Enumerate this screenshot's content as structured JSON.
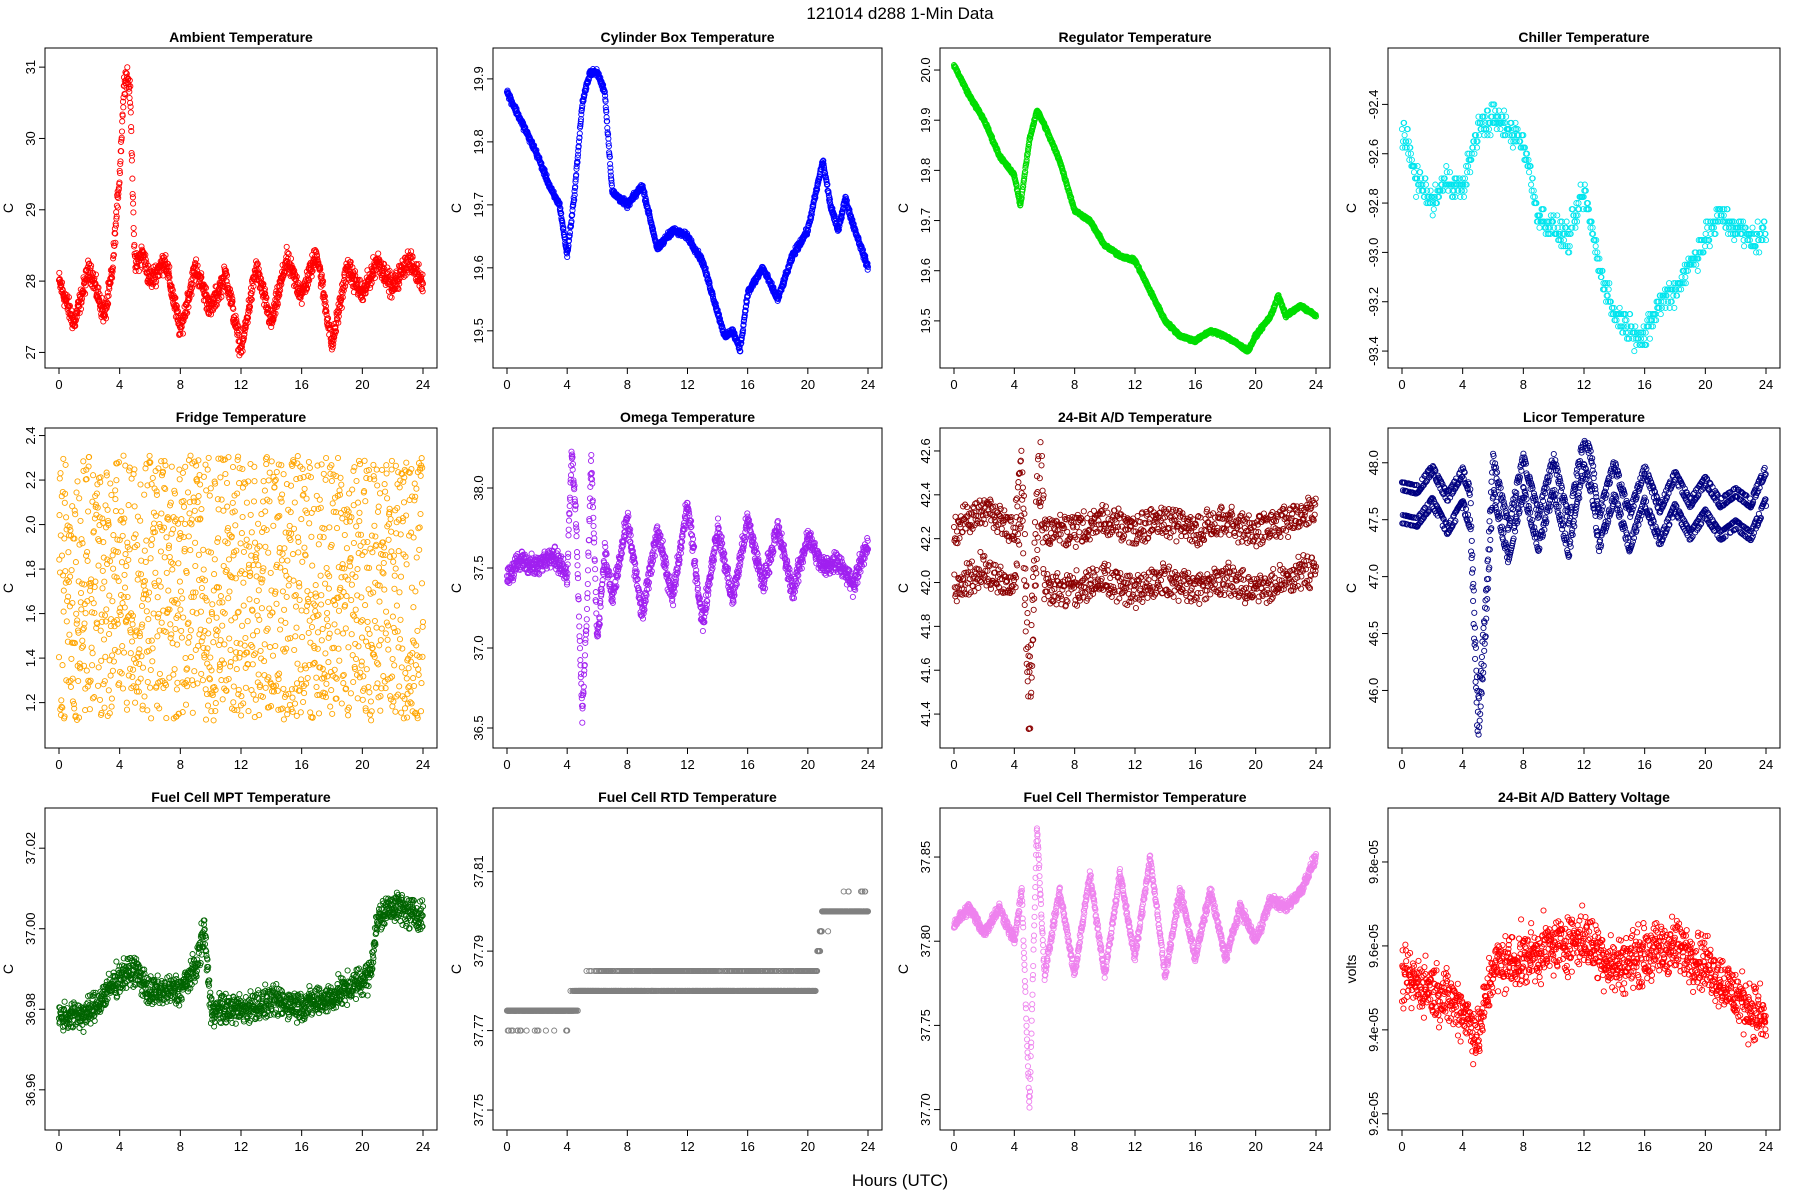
{
  "page": {
    "title": "121014   d288   1-Min Data",
    "xlabel": "Hours (UTC)"
  },
  "chart_data": [
    {
      "type": "scatter",
      "title": "Ambient Temperature",
      "ylabel": "C",
      "color": "#ff0000",
      "xlim": [
        0,
        24
      ],
      "ylim": [
        26.95,
        31.1
      ],
      "xticks": [
        "0",
        "4",
        "8",
        "12",
        "16",
        "20",
        "24"
      ],
      "yticks": [
        "27",
        "28",
        "29",
        "30",
        "31"
      ],
      "ytick_values": [
        27,
        28,
        29,
        30,
        31
      ],
      "x": [
        0,
        1,
        2,
        3,
        3.5,
        4,
        4.3,
        4.5,
        4.7,
        5,
        5.5,
        6,
        7,
        8,
        9,
        10,
        11,
        12,
        13,
        14,
        15,
        16,
        17,
        18,
        19,
        20,
        21,
        22,
        23,
        24
      ],
      "y": [
        28.0,
        27.4,
        28.2,
        27.5,
        28.1,
        29.5,
        30.8,
        30.9,
        30.6,
        28.2,
        28.4,
        28.0,
        28.3,
        27.3,
        28.2,
        27.6,
        28.1,
        27.0,
        28.2,
        27.4,
        28.3,
        27.8,
        28.4,
        27.1,
        28.2,
        27.8,
        28.3,
        27.9,
        28.3,
        28.0
      ],
      "n": 1440,
      "noise": 0.18
    },
    {
      "type": "scatter",
      "title": "Cylinder Box Temperature",
      "ylabel": "C",
      "color": "#0000ff",
      "xlim": [
        0,
        24
      ],
      "ylim": [
        19.46,
        19.93
      ],
      "xticks": [
        "0",
        "4",
        "8",
        "12",
        "16",
        "20",
        "24"
      ],
      "yticks": [
        "19.5",
        "19.6",
        "19.7",
        "19.8",
        "19.9"
      ],
      "ytick_values": [
        19.5,
        19.6,
        19.7,
        19.8,
        19.9
      ],
      "x": [
        0,
        1,
        2,
        3,
        3.5,
        4,
        4.5,
        5,
        5.5,
        6,
        6.5,
        7,
        8,
        9,
        10,
        11,
        12,
        13,
        14,
        14.5,
        15,
        15.5,
        16,
        17,
        18,
        19,
        20,
        21,
        21.5,
        22,
        22.5,
        23,
        24
      ],
      "y": [
        19.88,
        19.83,
        19.78,
        19.72,
        19.7,
        19.62,
        19.72,
        19.86,
        19.91,
        19.91,
        19.88,
        19.72,
        19.7,
        19.73,
        19.63,
        19.66,
        19.65,
        19.61,
        19.53,
        19.49,
        19.5,
        19.47,
        19.56,
        19.6,
        19.55,
        19.62,
        19.66,
        19.77,
        19.7,
        19.66,
        19.71,
        19.67,
        19.6
      ],
      "n": 1440,
      "noise": 0.006
    },
    {
      "type": "scatter",
      "title": "Regulator Temperature",
      "ylabel": "C",
      "color": "#00dd00",
      "xlim": [
        0,
        24
      ],
      "ylim": [
        19.43,
        20.02
      ],
      "xticks": [
        "0",
        "4",
        "8",
        "12",
        "16",
        "20",
        "24"
      ],
      "yticks": [
        "19.5",
        "19.6",
        "19.7",
        "19.8",
        "19.9",
        "20.0"
      ],
      "ytick_values": [
        19.5,
        19.6,
        19.7,
        19.8,
        19.9,
        20.0
      ],
      "x": [
        0,
        1,
        2,
        3,
        4,
        4.4,
        5,
        5.5,
        6,
        7,
        8,
        9,
        10,
        11,
        12,
        13,
        14,
        15,
        16,
        17,
        18,
        19,
        19.5,
        20,
        21,
        21.5,
        22,
        23,
        24
      ],
      "y": [
        20.01,
        19.95,
        19.9,
        19.83,
        19.79,
        19.73,
        19.86,
        19.92,
        19.89,
        19.82,
        19.72,
        19.7,
        19.65,
        19.63,
        19.62,
        19.56,
        19.5,
        19.47,
        19.46,
        19.48,
        19.47,
        19.45,
        19.44,
        19.47,
        19.51,
        19.55,
        19.51,
        19.53,
        19.51
      ],
      "n": 1440,
      "noise": 0.004
    },
    {
      "type": "scatter",
      "title": "Chiller Temperature",
      "ylabel": "C",
      "color": "#00e5ee",
      "xlim": [
        0,
        24
      ],
      "ylim": [
        -93.42,
        -92.22
      ],
      "xticks": [
        "0",
        "4",
        "8",
        "12",
        "16",
        "20",
        "24"
      ],
      "yticks": [
        "-92.4",
        "-92.6",
        "-92.8",
        "-93.0",
        "-93.2",
        "-93.4"
      ],
      "ytick_values": [
        -92.4,
        -92.6,
        -92.8,
        -93.0,
        -93.2,
        -93.4
      ],
      "x": [
        0,
        1,
        2,
        3,
        4,
        5,
        6,
        7,
        8,
        9,
        10,
        11,
        12,
        13,
        14,
        15,
        16,
        17,
        18,
        19,
        20,
        21,
        22,
        23,
        24
      ],
      "y": [
        -92.5,
        -92.7,
        -92.8,
        -92.7,
        -92.75,
        -92.5,
        -92.45,
        -92.5,
        -92.55,
        -92.85,
        -92.9,
        -92.95,
        -92.75,
        -93.05,
        -93.25,
        -93.3,
        -93.35,
        -93.2,
        -93.15,
        -93.05,
        -92.95,
        -92.85,
        -92.9,
        -92.95,
        -92.92
      ],
      "n": 700,
      "noise": 0.07,
      "step": 0.025
    },
    {
      "type": "scatter",
      "title": "Fridge Temperature",
      "ylabel": "C",
      "color": "#ffa500",
      "xlim": [
        0,
        24
      ],
      "ylim": [
        1.05,
        2.38
      ],
      "xticks": [
        "0",
        "4",
        "8",
        "12",
        "16",
        "20",
        "24"
      ],
      "yticks": [
        "1.2",
        "1.4",
        "1.6",
        "1.8",
        "2.0",
        "2.2",
        "2.4"
      ],
      "ytick_values": [
        1.2,
        1.4,
        1.6,
        1.8,
        2.0,
        2.2,
        2.4
      ],
      "x": [
        0,
        24
      ],
      "y": [
        1.7,
        1.7
      ],
      "n": 1440,
      "uniform": [
        1.12,
        2.31
      ]
    },
    {
      "type": "scatter",
      "title": "Omega Temperature",
      "ylabel": "C",
      "color": "#a020f0",
      "xlim": [
        0,
        24
      ],
      "ylim": [
        36.45,
        38.3
      ],
      "xticks": [
        "0",
        "4",
        "8",
        "12",
        "16",
        "20",
        "24"
      ],
      "yticks": [
        "36.5",
        "37.0",
        "37.5",
        "38.0"
      ],
      "ytick_values": [
        36.5,
        37.0,
        37.5,
        38.0
      ],
      "x": [
        0,
        1,
        2,
        3,
        4,
        4.3,
        4.6,
        5,
        5.3,
        5.6,
        6,
        6.5,
        7,
        8,
        9,
        10,
        11,
        12,
        13,
        14,
        15,
        16,
        17,
        18,
        19,
        20,
        21,
        22,
        23,
        24
      ],
      "y": [
        37.45,
        37.55,
        37.5,
        37.6,
        37.45,
        38.25,
        37.8,
        36.55,
        37.2,
        38.2,
        37.05,
        37.6,
        37.3,
        37.8,
        37.2,
        37.75,
        37.3,
        37.9,
        37.15,
        37.75,
        37.3,
        37.8,
        37.4,
        37.75,
        37.35,
        37.7,
        37.5,
        37.55,
        37.4,
        37.65
      ],
      "n": 1440,
      "noise": 0.08
    },
    {
      "type": "scatter",
      "title": "24-Bit A/D Temperature",
      "ylabel": "C",
      "color": "#8b0000",
      "xlim": [
        0,
        24
      ],
      "ylim": [
        41.3,
        42.65
      ],
      "xticks": [
        "0",
        "4",
        "8",
        "12",
        "16",
        "20",
        "24"
      ],
      "yticks": [
        "41.4",
        "41.6",
        "41.8",
        "42.0",
        "42.2",
        "42.4",
        "42.6"
      ],
      "ytick_values": [
        41.4,
        41.6,
        41.8,
        42.0,
        42.2,
        42.4,
        42.6
      ],
      "x": [
        0,
        2,
        4,
        4.5,
        5,
        5.3,
        5.7,
        6,
        8,
        10,
        12,
        14,
        16,
        18,
        20,
        22,
        24
      ],
      "y": [
        42.1,
        42.2,
        42.1,
        42.5,
        41.4,
        42.0,
        42.6,
        42.1,
        42.1,
        42.15,
        42.1,
        42.15,
        42.1,
        42.15,
        42.1,
        42.15,
        42.2
      ],
      "n": 1440,
      "osc": 0.17,
      "noise": 0.05
    },
    {
      "type": "scatter",
      "title": "Licor Temperature",
      "ylabel": "C",
      "color": "#000080",
      "xlim": [
        0,
        24
      ],
      "ylim": [
        45.6,
        48.2
      ],
      "xticks": [
        "0",
        "4",
        "8",
        "12",
        "16",
        "20",
        "24"
      ],
      "yticks": [
        "46.0",
        "46.5",
        "47.0",
        "47.5",
        "48.0"
      ],
      "ytick_values": [
        46.0,
        46.5,
        47.0,
        47.5,
        48.0
      ],
      "x": [
        0,
        1,
        2,
        3,
        4,
        4.5,
        5,
        5.5,
        6,
        7,
        8,
        9,
        10,
        11,
        12,
        12.5,
        13,
        14,
        15,
        16,
        17,
        18,
        19,
        20,
        21,
        22,
        23,
        24
      ],
      "y": [
        47.65,
        47.62,
        47.8,
        47.55,
        47.78,
        47.6,
        45.7,
        46.6,
        47.9,
        47.3,
        47.9,
        47.4,
        47.9,
        47.35,
        48.1,
        47.9,
        47.4,
        47.85,
        47.4,
        47.8,
        47.45,
        47.75,
        47.5,
        47.7,
        47.5,
        47.6,
        47.5,
        47.8
      ],
      "n": 1440,
      "noise": 0.005,
      "osc": 0.18
    },
    {
      "type": "scatter",
      "title": "Fuel Cell MPT Temperature",
      "ylabel": "C",
      "color": "#006400",
      "xlim": [
        0,
        24
      ],
      "ylim": [
        36.953,
        37.027
      ],
      "xticks": [
        "0",
        "4",
        "8",
        "12",
        "16",
        "20",
        "24"
      ],
      "yticks": [
        "36.96",
        "36.98",
        "37.00",
        "37.02"
      ],
      "ytick_values": [
        36.96,
        36.98,
        37.0,
        37.02
      ],
      "x": [
        0,
        2,
        4,
        5,
        6,
        8,
        9,
        9.6,
        10,
        12,
        14,
        16,
        18,
        20,
        20.5,
        21,
        22,
        23,
        24
      ],
      "y": [
        36.978,
        36.979,
        36.988,
        36.99,
        36.984,
        36.985,
        36.99,
        37.0,
        36.98,
        36.98,
        36.982,
        36.981,
        36.983,
        36.987,
        36.989,
        37.002,
        37.006,
        37.004,
        37.003
      ],
      "n": 1440,
      "noise": 0.0045
    },
    {
      "type": "scatter",
      "title": "Fuel Cell RTD Temperature",
      "ylabel": "C",
      "color": "#808080",
      "xlim": [
        0,
        24
      ],
      "ylim": [
        37.748,
        37.823
      ],
      "xticks": [
        "0",
        "4",
        "8",
        "12",
        "16",
        "20",
        "24"
      ],
      "yticks": [
        "37.75",
        "37.77",
        "37.79",
        "37.81"
      ],
      "ytick_values": [
        37.75,
        37.77,
        37.79,
        37.81
      ],
      "x": [
        0,
        4,
        5,
        6,
        10,
        12,
        16,
        20,
        20.5,
        21,
        24
      ],
      "y": [
        37.774,
        37.775,
        37.78,
        37.782,
        37.783,
        37.782,
        37.782,
        37.782,
        37.782,
        37.8,
        37.801
      ],
      "n": 1440,
      "noise": 0.003,
      "step": 0.005
    },
    {
      "type": "scatter",
      "title": "Fuel Cell Thermistor Temperature",
      "ylabel": "C",
      "color": "#ee82ee",
      "xlim": [
        0,
        24
      ],
      "ylim": [
        37.695,
        37.872
      ],
      "xticks": [
        "0",
        "4",
        "8",
        "12",
        "16",
        "20",
        "24"
      ],
      "yticks": [
        "37.70",
        "37.75",
        "37.80",
        "37.85"
      ],
      "ytick_values": [
        37.7,
        37.75,
        37.8,
        37.85
      ],
      "x": [
        0,
        1,
        2,
        3,
        4,
        4.5,
        5,
        5.5,
        6,
        7,
        8,
        9,
        10,
        11,
        12,
        13,
        14,
        15,
        16,
        17,
        18,
        19,
        20,
        21,
        22,
        23,
        24
      ],
      "y": [
        37.81,
        37.82,
        37.805,
        37.82,
        37.8,
        37.83,
        37.7,
        37.87,
        37.78,
        37.83,
        37.78,
        37.84,
        37.78,
        37.84,
        37.79,
        37.85,
        37.78,
        37.83,
        37.79,
        37.83,
        37.79,
        37.82,
        37.8,
        37.825,
        37.82,
        37.83,
        37.85
      ],
      "n": 1440,
      "noise": 0.004
    },
    {
      "type": "scatter",
      "title": "24-Bit A/D Battery Voltage",
      "ylabel": "volts",
      "color": "#ff0000",
      "xlim": [
        0,
        24
      ],
      "ylim": [
        9.19e-05,
        9.9e-05
      ],
      "xticks": [
        "0",
        "4",
        "8",
        "12",
        "16",
        "20",
        "24"
      ],
      "yticks": [
        "9.2e-05",
        "9.4e-05",
        "9.6e-05",
        "9.8e-05"
      ],
      "ytick_values": [
        9.2e-05,
        9.4e-05,
        9.6e-05,
        9.8e-05
      ],
      "x": [
        0,
        2,
        4,
        5,
        6,
        8,
        10,
        12,
        14,
        16,
        18,
        20,
        22,
        24
      ],
      "y": [
        9.52e-05,
        9.5e-05,
        9.45e-05,
        9.38e-05,
        9.55e-05,
        9.57e-05,
        9.6e-05,
        9.62e-05,
        9.55e-05,
        9.58e-05,
        9.6e-05,
        9.56e-05,
        9.48e-05,
        9.42e-05
      ],
      "n": 1300,
      "noise": 8e-07
    }
  ]
}
